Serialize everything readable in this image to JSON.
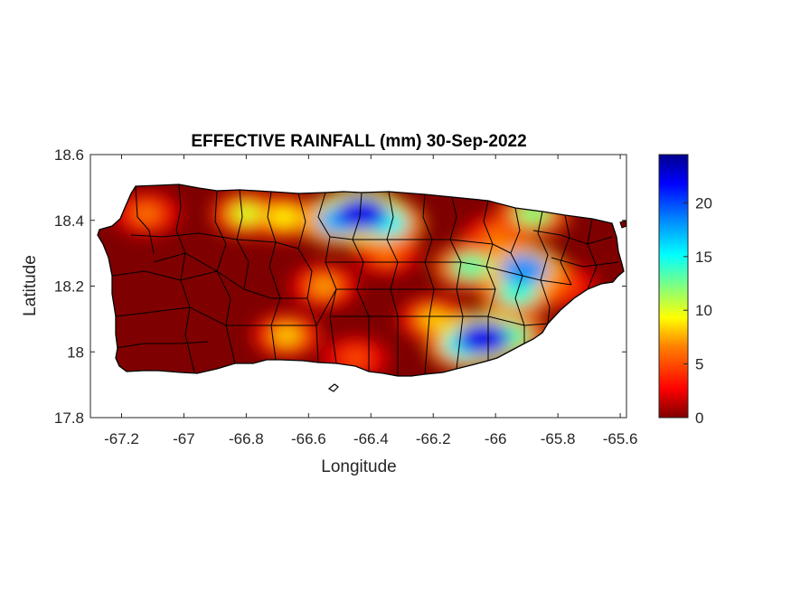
{
  "title": "EFFECTIVE RAINFALL (mm) 30-Sep-2022",
  "xlabel": "Longitude",
  "ylabel": "Latitude",
  "x_ticks": [
    "-67.2",
    "-67",
    "-66.8",
    "-66.6",
    "-66.4",
    "-66.2",
    "-66",
    "-65.8",
    "-65.6"
  ],
  "y_ticks": [
    "18.6",
    "18.4",
    "18.2",
    "18",
    "17.8"
  ],
  "colorbar_ticks": [
    "20",
    "15",
    "10",
    "5",
    "0"
  ],
  "colors": {
    "land_background": "#7f0000",
    "boundary": "#000000",
    "colormap": [
      "#7f0000",
      "#ff0000",
      "#ff8000",
      "#ffff00",
      "#80ff80",
      "#00ffff",
      "#0080ff",
      "#0000ff",
      "#00008f"
    ]
  },
  "chart_data": {
    "type": "heatmap",
    "variable": "effective rainfall",
    "unit": "mm",
    "date": "30-Sep-2022",
    "xlim": [
      -67.3,
      -65.58
    ],
    "ylim": [
      17.8,
      18.6
    ],
    "colorbar_range": [
      0,
      24.5
    ],
    "colormap_name": "jet",
    "grid": false,
    "rain_zones": [
      {
        "lon": -66.43,
        "lat": 18.42,
        "value": 22
      },
      {
        "lon": -66.5,
        "lat": 18.4,
        "value": 17
      },
      {
        "lon": -66.35,
        "lat": 18.39,
        "value": 15
      },
      {
        "lon": -66.04,
        "lat": 18.04,
        "value": 22
      },
      {
        "lon": -66.1,
        "lat": 18.02,
        "value": 15
      },
      {
        "lon": -65.95,
        "lat": 18.05,
        "value": 13
      },
      {
        "lon": -65.91,
        "lat": 18.25,
        "value": 18
      },
      {
        "lon": -65.93,
        "lat": 18.18,
        "value": 14
      },
      {
        "lon": -66.08,
        "lat": 18.26,
        "value": 13
      },
      {
        "lon": -65.88,
        "lat": 18.42,
        "value": 12
      },
      {
        "lon": -66.8,
        "lat": 18.42,
        "value": 10
      },
      {
        "lon": -66.68,
        "lat": 18.41,
        "value": 9
      },
      {
        "lon": -67.12,
        "lat": 18.42,
        "value": 6
      },
      {
        "lon": -66.55,
        "lat": 18.2,
        "value": 7
      },
      {
        "lon": -66.67,
        "lat": 18.05,
        "value": 8
      },
      {
        "lon": -66.2,
        "lat": 18.1,
        "value": 8
      },
      {
        "lon": -66.35,
        "lat": 18.3,
        "value": 6
      },
      {
        "lon": -66.0,
        "lat": 18.35,
        "value": 6
      },
      {
        "lon": -65.78,
        "lat": 18.2,
        "value": 5
      },
      {
        "lon": -66.45,
        "lat": 17.98,
        "value": 5
      }
    ]
  }
}
